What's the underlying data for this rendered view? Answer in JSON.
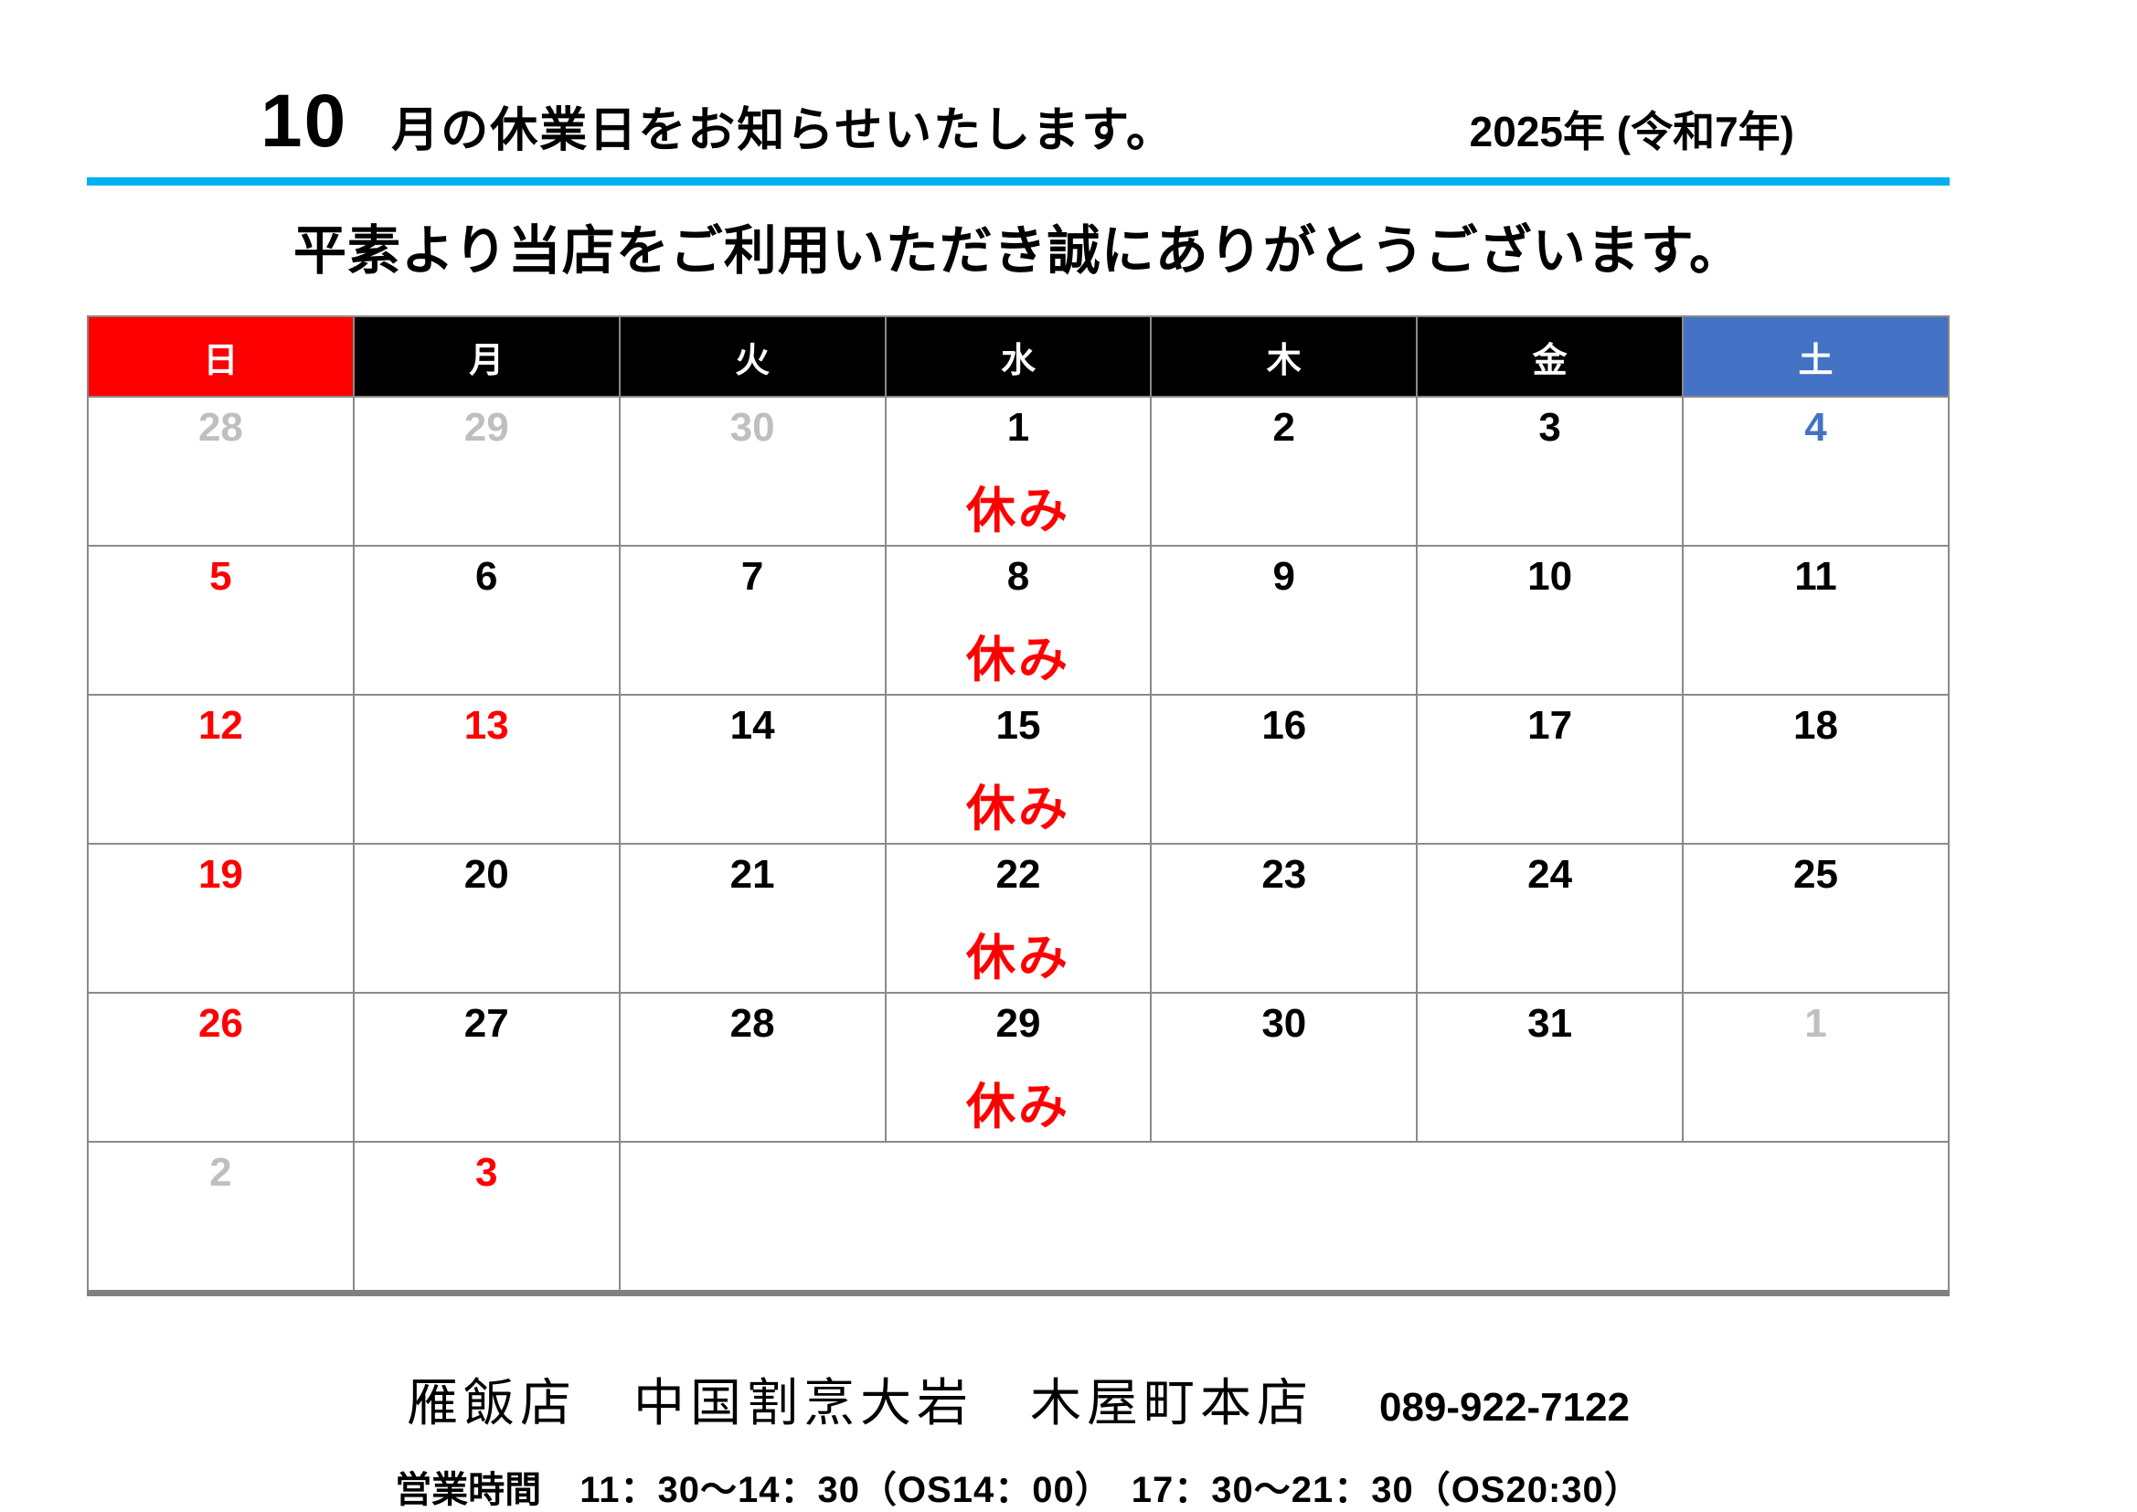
{
  "header": {
    "month_number": "10",
    "title": "月の休業日をお知らせいたします。",
    "year": "2025年 (令和7年)"
  },
  "greeting": "平素より当店をご利用いただき誠にありがとうございます。",
  "colors": {
    "rule_blue": "#00b0f0",
    "sunday_header_bg": "#ff0000",
    "weekday_header_bg": "#000000",
    "saturday_header_bg": "#4472c4",
    "header_text": "#ffffff",
    "red": "#ff0000",
    "black": "#000000",
    "blue": "#4472c4",
    "muted": "#bfbfbf",
    "closed_red": "#ff0000",
    "border_gray": "#8a8a8a"
  },
  "calendar": {
    "closed_label": "休み",
    "weekdays": [
      {
        "label": "日",
        "bg": "#ff0000"
      },
      {
        "label": "月",
        "bg": "#000000"
      },
      {
        "label": "火",
        "bg": "#000000"
      },
      {
        "label": "水",
        "bg": "#000000"
      },
      {
        "label": "木",
        "bg": "#000000"
      },
      {
        "label": "金",
        "bg": "#000000"
      },
      {
        "label": "土",
        "bg": "#4472c4"
      }
    ],
    "weeks": [
      [
        {
          "day": "28",
          "color": "muted"
        },
        {
          "day": "29",
          "color": "muted"
        },
        {
          "day": "30",
          "color": "muted"
        },
        {
          "day": "1",
          "color": "black",
          "closed": true
        },
        {
          "day": "2",
          "color": "black"
        },
        {
          "day": "3",
          "color": "black"
        },
        {
          "day": "4",
          "color": "blue"
        }
      ],
      [
        {
          "day": "5",
          "color": "red"
        },
        {
          "day": "6",
          "color": "black"
        },
        {
          "day": "7",
          "color": "black"
        },
        {
          "day": "8",
          "color": "black",
          "closed": true
        },
        {
          "day": "9",
          "color": "black"
        },
        {
          "day": "10",
          "color": "black"
        },
        {
          "day": "11",
          "color": "black"
        }
      ],
      [
        {
          "day": "12",
          "color": "red"
        },
        {
          "day": "13",
          "color": "red"
        },
        {
          "day": "14",
          "color": "black"
        },
        {
          "day": "15",
          "color": "black",
          "closed": true
        },
        {
          "day": "16",
          "color": "black"
        },
        {
          "day": "17",
          "color": "black"
        },
        {
          "day": "18",
          "color": "black"
        }
      ],
      [
        {
          "day": "19",
          "color": "red"
        },
        {
          "day": "20",
          "color": "black"
        },
        {
          "day": "21",
          "color": "black"
        },
        {
          "day": "22",
          "color": "black",
          "closed": true
        },
        {
          "day": "23",
          "color": "black"
        },
        {
          "day": "24",
          "color": "black"
        },
        {
          "day": "25",
          "color": "black"
        }
      ],
      [
        {
          "day": "26",
          "color": "red"
        },
        {
          "day": "27",
          "color": "black"
        },
        {
          "day": "28",
          "color": "black"
        },
        {
          "day": "29",
          "color": "black",
          "closed": true
        },
        {
          "day": "30",
          "color": "black"
        },
        {
          "day": "31",
          "color": "black"
        },
        {
          "day": "1",
          "color": "muted"
        }
      ],
      [
        {
          "day": "2",
          "color": "muted"
        },
        {
          "day": "3",
          "color": "red"
        },
        {
          "day": "",
          "color": "black",
          "span": 5
        }
      ]
    ]
  },
  "footer": {
    "store_name": "雁飯店　中国割烹大岩　木屋町本店",
    "phone": "089-922-7122",
    "hours_label": "営業時間",
    "hours": "11：30～14：30（OS14：00）　17：30～21：30（OS20:30）"
  }
}
